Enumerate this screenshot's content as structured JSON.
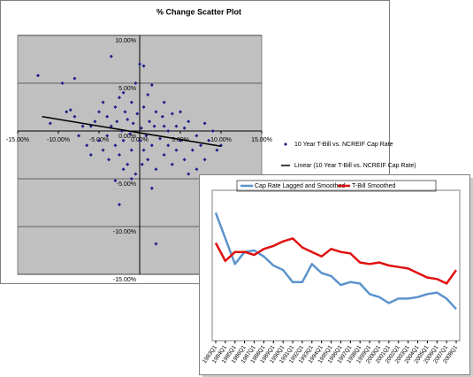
{
  "chart_data": [
    {
      "type": "scatter",
      "title": "% Change Scatter Plot",
      "xlim": [
        -15,
        15
      ],
      "ylim": [
        -15,
        10
      ],
      "xticks": [
        {
          "value": -15,
          "label": "-15.00%"
        },
        {
          "value": -10,
          "label": "-10.00%"
        },
        {
          "value": -5,
          "label": "-5.00%"
        },
        {
          "value": 0,
          "label": "0.00%"
        },
        {
          "value": 5,
          "label": "5.00%"
        },
        {
          "value": 10,
          "label": "10.00%"
        },
        {
          "value": 15,
          "label": "15.00%"
        }
      ],
      "yticks": [
        {
          "value": -15,
          "label": "-15.00%"
        },
        {
          "value": -10,
          "label": "-10.00%"
        },
        {
          "value": -5,
          "label": "-5.00%"
        },
        {
          "value": 0,
          "label": "0.00%"
        },
        {
          "value": 5,
          "label": "5.00%"
        },
        {
          "value": 10,
          "label": "10.00%"
        }
      ],
      "grid": true,
      "series": [
        {
          "name": "10 Year T-Bill vs. NCREIF Cap Rate",
          "color": "#1f1f8c",
          "x": [
            -12.5,
            -9.5,
            -8,
            -3.5,
            0,
            0.5,
            1.5,
            -2.5,
            2,
            -11,
            -9,
            -8.5,
            -8,
            -7.5,
            -7,
            -6.5,
            -6,
            -6,
            -5.5,
            -5,
            -5,
            -4.5,
            -4.5,
            -4,
            -4,
            -3.8,
            -3.5,
            -3,
            -3,
            -2.8,
            -2.5,
            -2.5,
            -2.2,
            -2,
            -2,
            -1.8,
            -1.5,
            -1.5,
            -1.2,
            -1,
            -1,
            -0.8,
            -0.5,
            -0.5,
            -0.3,
            0,
            0.2,
            0.5,
            0.5,
            0.8,
            1,
            1,
            1.2,
            1.5,
            1.8,
            2,
            2,
            2.5,
            2.8,
            3,
            3,
            3.5,
            3.5,
            4,
            4,
            4.5,
            4.5,
            5,
            5,
            5.5,
            5.5,
            6,
            6,
            6.5,
            7,
            7,
            7.5,
            8,
            8,
            8.5,
            9,
            9.5,
            10,
            -1,
            -3,
            1.5,
            -2,
            0.3,
            3
          ],
          "values": [
            5.8,
            5,
            5.5,
            7.8,
            7,
            6.8,
            4.8,
            -7.7,
            -11.8,
            0.8,
            2,
            2.2,
            1.5,
            -0.5,
            0.5,
            -1.5,
            -2.5,
            0.5,
            1,
            -1,
            2,
            -2,
            3,
            1.5,
            -0.5,
            -3,
            0.5,
            2.5,
            -1.5,
            1,
            3.5,
            -2.5,
            0,
            4,
            -1,
            2,
            -3.5,
            1.2,
            -0.3,
            3,
            -2,
            0.8,
            5,
            -4.5,
            1.8,
            -1,
            0.3,
            2.5,
            -2,
            -0.5,
            3.8,
            -3,
            1,
            -1.5,
            0.5,
            2,
            -4,
            -0.8,
            1.5,
            -2.5,
            3,
            0,
            -1.5,
            1.8,
            -3.5,
            0.5,
            -2,
            -1,
            2,
            -3,
            0.3,
            -4.5,
            1,
            -2,
            -0.5,
            -4,
            -1.5,
            0.8,
            -3,
            -1,
            0,
            -2,
            -1.5,
            -5,
            -5.2,
            -6,
            -4,
            -3.5,
            0.5
          ]
        },
        {
          "name": "Linear (10 Year T-Bill vs. NCREIF Cap Rate)",
          "color": "#000000",
          "line": true,
          "x": [
            -12,
            10
          ],
          "values": [
            1.5,
            -1.6
          ]
        }
      ]
    },
    {
      "type": "line",
      "categories": [
        "1983Q1",
        "1984Q1",
        "1985Q1",
        "1986Q1",
        "1987Q1",
        "1988Q1",
        "1989Q1",
        "1990Q1",
        "1991Q1",
        "1992Q1",
        "1993Q1",
        "1994Q1",
        "1995Q1",
        "1996Q1",
        "1997Q1",
        "1998Q1",
        "1999Q1",
        "2000Q1",
        "2001Q1",
        "2002Q1",
        "2003Q1",
        "2004Q1",
        "2005Q1",
        "2006Q1",
        "2007Q1",
        "2008Q1"
      ],
      "ylim": [
        0,
        10
      ],
      "series": [
        {
          "name": "Cap Rate Lagged and Smoothed",
          "color": "#5b93cc",
          "values": [
            8.5,
            6.8,
            5.1,
            5.9,
            6.0,
            5.6,
            5.0,
            4.7,
            3.9,
            3.9,
            5.1,
            4.5,
            4.3,
            3.7,
            3.9,
            3.8,
            3.1,
            2.9,
            2.5,
            2.8,
            2.8,
            2.9,
            3.1,
            3.2,
            2.8,
            2.1
          ]
        },
        {
          "name": "T-Bill Smoothed",
          "color": "#e01010",
          "values": [
            6.5,
            5.3,
            5.9,
            5.9,
            5.7,
            6.1,
            6.3,
            6.6,
            6.8,
            6.2,
            5.9,
            5.6,
            6.1,
            5.9,
            5.8,
            5.2,
            5.1,
            5.2,
            5.0,
            4.9,
            4.8,
            4.5,
            4.2,
            4.1,
            3.8,
            4.7
          ]
        }
      ]
    }
  ]
}
